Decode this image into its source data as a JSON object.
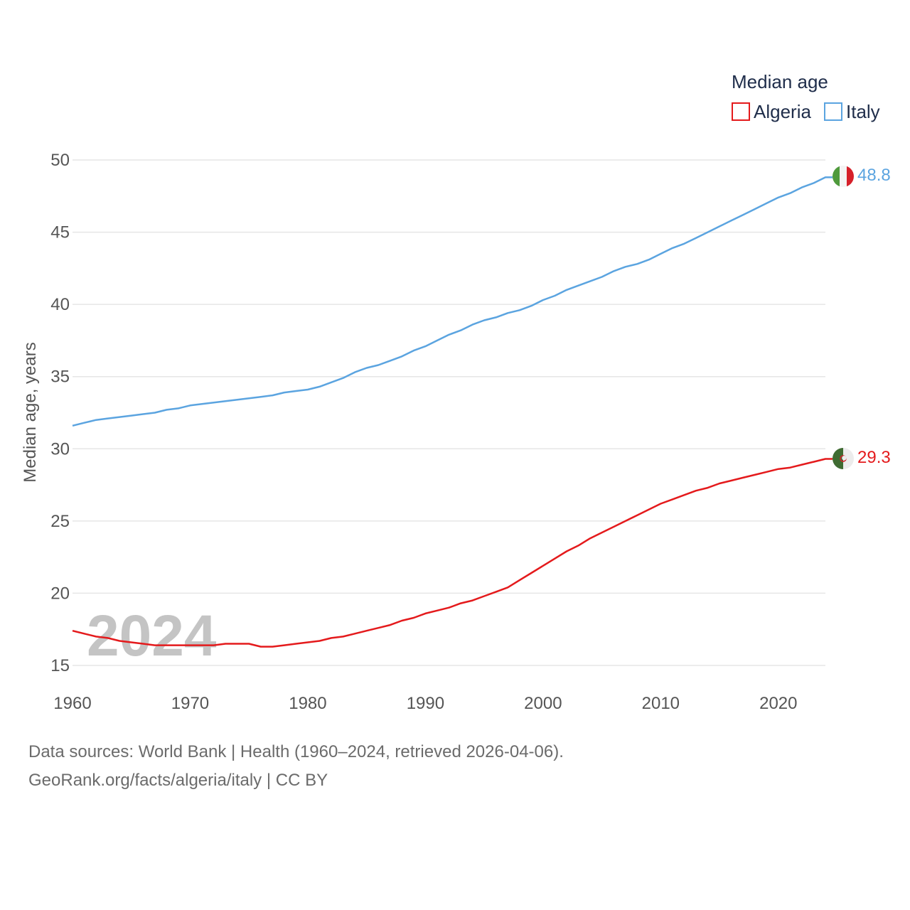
{
  "chart_data": {
    "type": "line",
    "title": "",
    "xlabel": "",
    "ylabel": "Median age, years",
    "ylim": [
      15,
      50
    ],
    "xlim": [
      1960,
      2024
    ],
    "yticks": [
      15,
      20,
      25,
      30,
      35,
      40,
      45,
      50
    ],
    "xticks": [
      1960,
      1970,
      1980,
      1990,
      2000,
      2010,
      2020
    ],
    "grid": true,
    "legend_title": "Median age",
    "legend_position": "top-right",
    "watermark_year": "2024",
    "x": [
      1960,
      1961,
      1962,
      1963,
      1964,
      1965,
      1966,
      1967,
      1968,
      1969,
      1970,
      1971,
      1972,
      1973,
      1974,
      1975,
      1976,
      1977,
      1978,
      1979,
      1980,
      1981,
      1982,
      1983,
      1984,
      1985,
      1986,
      1987,
      1988,
      1989,
      1990,
      1991,
      1992,
      1993,
      1994,
      1995,
      1996,
      1997,
      1998,
      1999,
      2000,
      2001,
      2002,
      2003,
      2004,
      2005,
      2006,
      2007,
      2008,
      2009,
      2010,
      2011,
      2012,
      2013,
      2014,
      2015,
      2016,
      2017,
      2018,
      2019,
      2020,
      2021,
      2022,
      2023,
      2024
    ],
    "series": [
      {
        "name": "Algeria",
        "color": "#e41a1c",
        "end_label": "29.3",
        "flag": "algeria-flag",
        "values": [
          17.4,
          17.2,
          17.0,
          16.9,
          16.7,
          16.6,
          16.5,
          16.4,
          16.4,
          16.4,
          16.4,
          16.4,
          16.4,
          16.5,
          16.5,
          16.5,
          16.3,
          16.3,
          16.4,
          16.5,
          16.6,
          16.7,
          16.9,
          17.0,
          17.2,
          17.4,
          17.6,
          17.8,
          18.1,
          18.3,
          18.6,
          18.8,
          19.0,
          19.3,
          19.5,
          19.8,
          20.1,
          20.4,
          20.9,
          21.4,
          21.9,
          22.4,
          22.9,
          23.3,
          23.8,
          24.2,
          24.6,
          25.0,
          25.4,
          25.8,
          26.2,
          26.5,
          26.8,
          27.1,
          27.3,
          27.6,
          27.8,
          28.0,
          28.2,
          28.4,
          28.6,
          28.7,
          28.9,
          29.1,
          29.3
        ]
      },
      {
        "name": "Italy",
        "color": "#5ba4e0",
        "end_label": "48.8",
        "flag": "italy-flag",
        "values": [
          31.6,
          31.8,
          32.0,
          32.1,
          32.2,
          32.3,
          32.4,
          32.5,
          32.7,
          32.8,
          33.0,
          33.1,
          33.2,
          33.3,
          33.4,
          33.5,
          33.6,
          33.7,
          33.9,
          34.0,
          34.1,
          34.3,
          34.6,
          34.9,
          35.3,
          35.6,
          35.8,
          36.1,
          36.4,
          36.8,
          37.1,
          37.5,
          37.9,
          38.2,
          38.6,
          38.9,
          39.1,
          39.4,
          39.6,
          39.9,
          40.3,
          40.6,
          41.0,
          41.3,
          41.6,
          41.9,
          42.3,
          42.6,
          42.8,
          43.1,
          43.5,
          43.9,
          44.2,
          44.6,
          45.0,
          45.4,
          45.8,
          46.2,
          46.6,
          47.0,
          47.4,
          47.7,
          48.1,
          48.4,
          48.8
        ]
      }
    ]
  },
  "footer": {
    "line1": "Data sources: World Bank | Health (1960–2024, retrieved 2026-04-06).",
    "line2": "GeoRank.org/facts/algeria/italy | CC BY"
  }
}
